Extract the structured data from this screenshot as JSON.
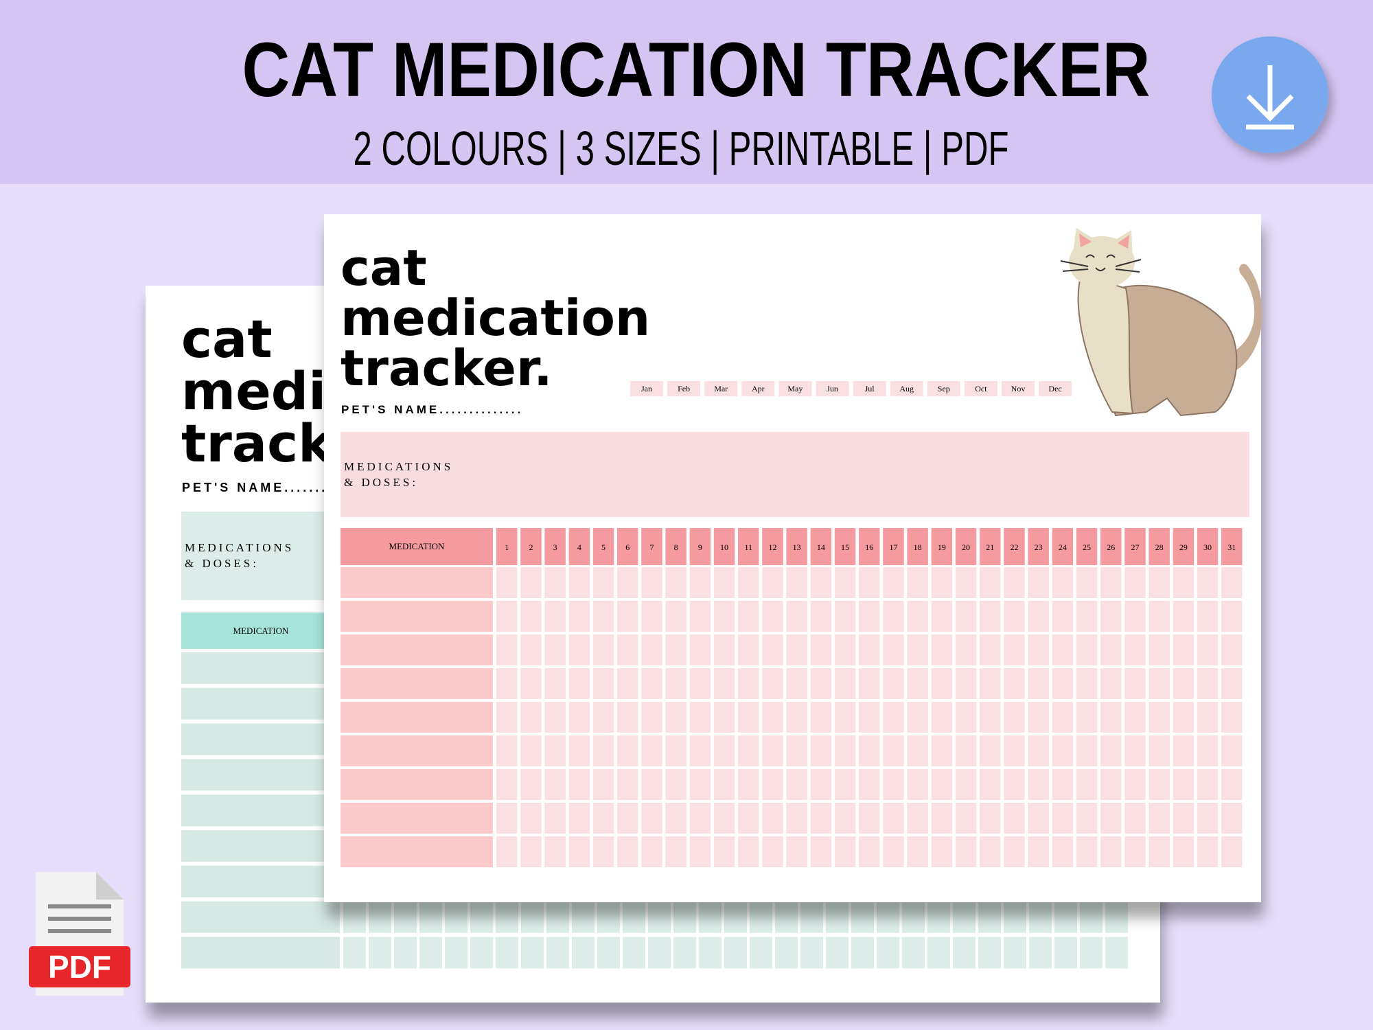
{
  "header": {
    "title": "CAT MEDICATION TRACKER",
    "subtitle": "2 COLOURS | 3 SIZES | PRINTABLE | PDF"
  },
  "back_sheet": {
    "title_lines": [
      "cat",
      "medication",
      "tracker."
    ],
    "pets_name": "PET'S NAME..............",
    "medications_label": [
      "MEDICATIONS",
      "& DOSES:"
    ],
    "table_header": "MEDICATION"
  },
  "front_sheet": {
    "title_lines": [
      "cat",
      "medication",
      "tracker."
    ],
    "pets_name": "PET'S NAME..............",
    "months": [
      "Jan",
      "Feb",
      "Mar",
      "Apr",
      "May",
      "Jun",
      "Jul",
      "Aug",
      "Sep",
      "Oct",
      "Nov",
      "Dec"
    ],
    "medications_label": [
      "MEDICATIONS",
      "& DOSES:"
    ],
    "table_header": "MEDICATION",
    "days": [
      1,
      2,
      3,
      4,
      5,
      6,
      7,
      8,
      9,
      10,
      11,
      12,
      13,
      14,
      15,
      16,
      17,
      18,
      19,
      20,
      21,
      22,
      23,
      24,
      25,
      26,
      27,
      28,
      29,
      30,
      31
    ]
  },
  "badge": {
    "label": "PDF"
  }
}
